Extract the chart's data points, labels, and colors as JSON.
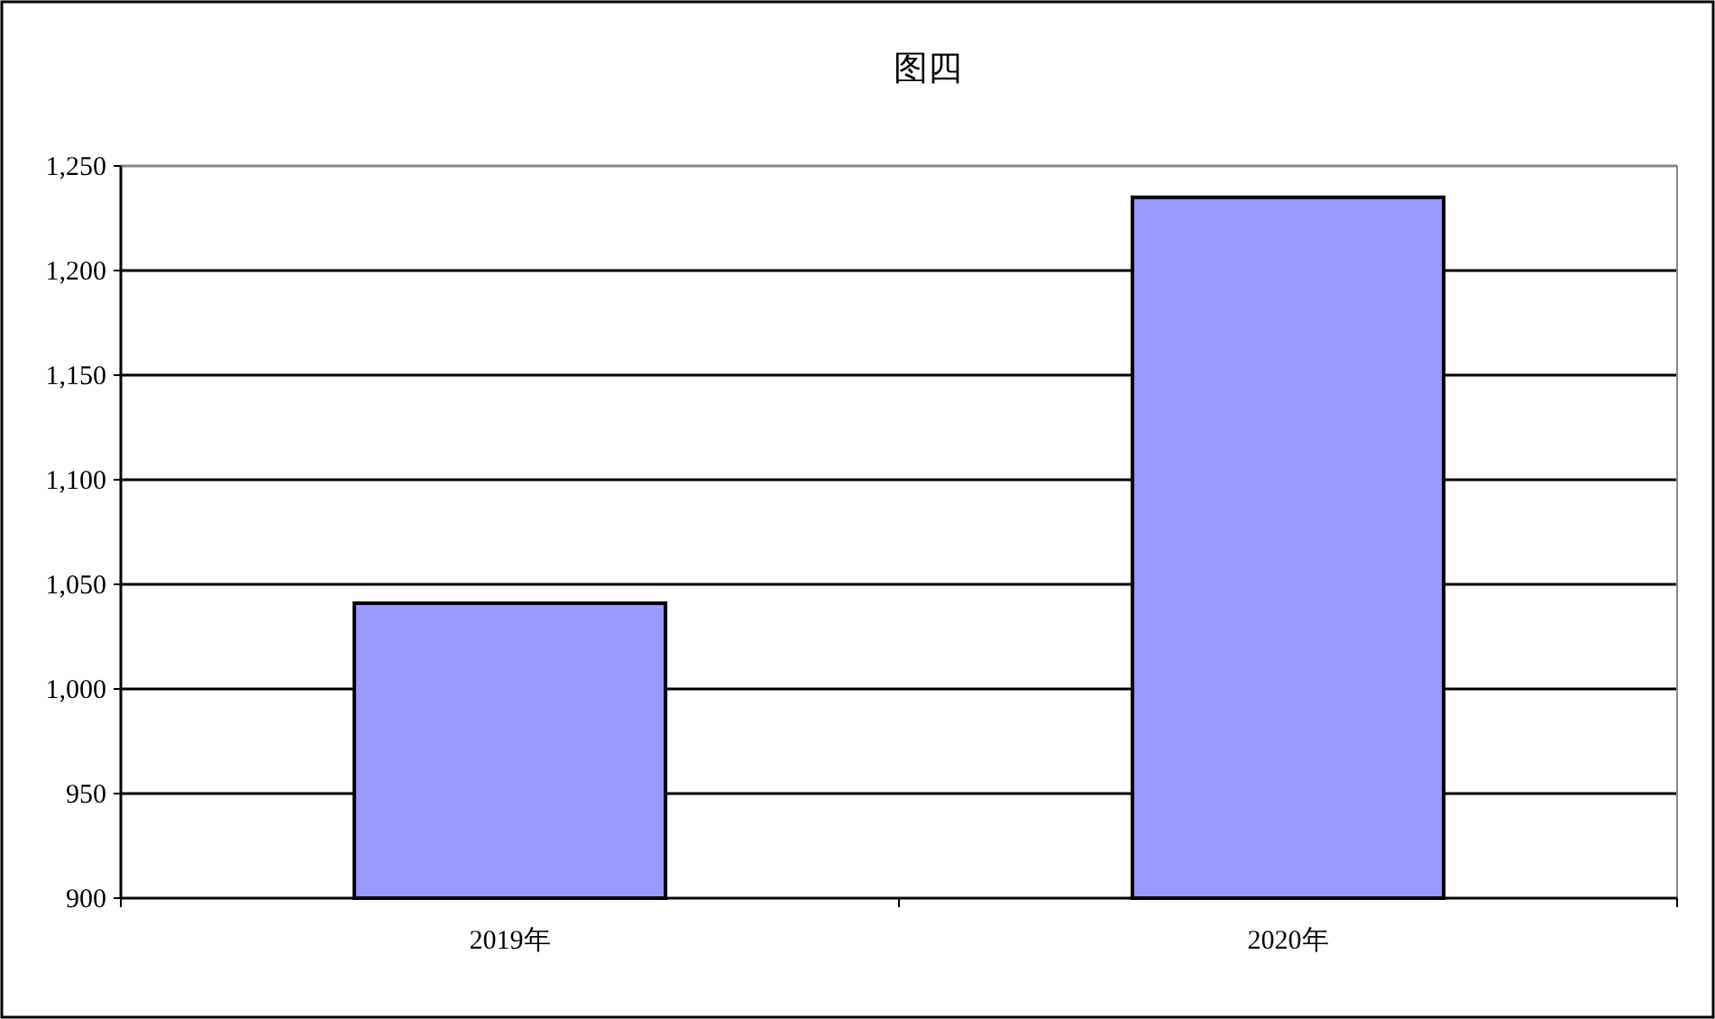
{
  "chart_data": {
    "type": "bar",
    "title": "图四",
    "categories": [
      "2019年",
      "2020年"
    ],
    "values": [
      1041,
      1235
    ],
    "color": "#9999ff",
    "ylim": [
      900,
      1250
    ],
    "yticks": [
      900,
      950,
      {
        "value": 1000,
        "label": "1,000"
      },
      {
        "value": 1050,
        "label": "1,050"
      },
      {
        "value": 1100,
        "label": "1,100"
      },
      {
        "value": 1150,
        "label": "1,150"
      },
      {
        "value": 1200,
        "label": "1,200"
      },
      {
        "value": 1250,
        "label": "1,250"
      }
    ],
    "grid": "y"
  }
}
